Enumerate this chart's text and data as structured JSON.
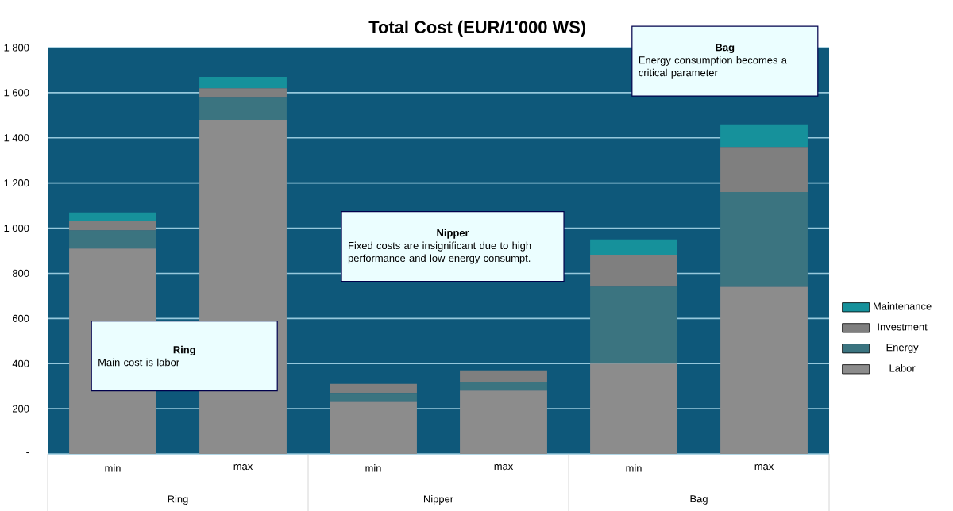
{
  "chart_data": {
    "type": "bar",
    "title": "Total Cost (EUR/1'000 WS)",
    "categories": [
      "min",
      "max",
      "min",
      "max",
      "min",
      "max"
    ],
    "stacked": true,
    "series": [
      {
        "name": "Labor",
        "color": "#8c8c8c",
        "values": [
          910,
          1480,
          230,
          280,
          400,
          740
        ]
      },
      {
        "name": "Energy",
        "color": "#3b7480",
        "values": [
          80,
          100,
          40,
          40,
          340,
          420
        ]
      },
      {
        "name": "Investment",
        "color": "#7f7f7f",
        "values": [
          40,
          40,
          40,
          50,
          140,
          200
        ]
      },
      {
        "name": "Maintenance",
        "color": "#16919b",
        "values": [
          40,
          50,
          0,
          0,
          70,
          100
        ]
      }
    ],
    "ylim": [
      0,
      1800
    ],
    "yticks": [
      {
        "value": 0,
        "label": "-"
      },
      {
        "value": 200,
        "label": "200"
      },
      {
        "value": 400,
        "label": "400"
      },
      {
        "value": 600,
        "label": "600"
      },
      {
        "value": 800,
        "label": "800"
      },
      {
        "value": 1000,
        "label": "1 000"
      },
      {
        "value": 1200,
        "label": "1 200"
      },
      {
        "value": 1400,
        "label": "1 400"
      },
      {
        "value": 1600,
        "label": "1 600"
      },
      {
        "value": 1800,
        "label": "1 800"
      }
    ],
    "grid": "y",
    "legend": "right",
    "annotations": [
      "Ring",
      "Main cost is labor",
      "Nipper",
      "Fixed costs are insignificant due to high performance and low energy consumpt.",
      "Bag",
      "Energy consumption becomes a critical parameter",
      "Ring",
      "Nipper",
      "Bag"
    ]
  }
}
